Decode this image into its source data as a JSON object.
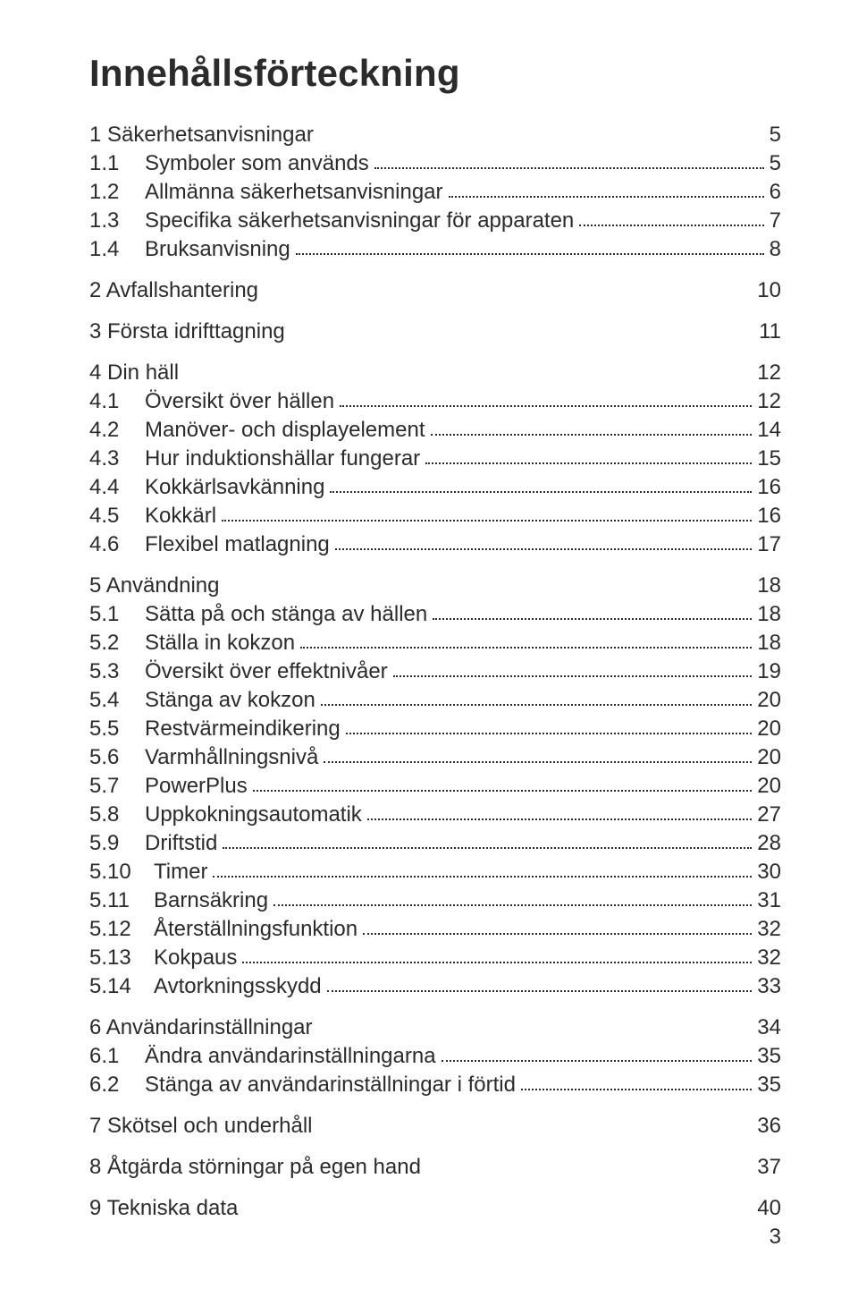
{
  "title": "Innehållsförteckning",
  "page_number": "3",
  "typography": {
    "title_fontsize": 42,
    "title_weight": 700,
    "body_fontsize": 24,
    "font_family": "Arial, Helvetica, sans-serif",
    "text_color": "#2b2b2b",
    "background_color": "#ffffff",
    "dot_leader_color": "#2b2b2b"
  },
  "toc": [
    {
      "num": "1",
      "label": "Säkerhetsanvisningar",
      "page": "5",
      "subs": [
        {
          "num": "1.1",
          "label": "Symboler som används",
          "page": "5"
        },
        {
          "num": "1.2",
          "label": "Allmänna säkerhetsanvisningar",
          "page": "6"
        },
        {
          "num": "1.3",
          "label": "Specifika säkerhetsanvisningar för apparaten",
          "page": "7"
        },
        {
          "num": "1.4",
          "label": "Bruksanvisning",
          "page": "8"
        }
      ]
    },
    {
      "num": "2",
      "label": "Avfallshantering",
      "page": "10",
      "subs": []
    },
    {
      "num": "3",
      "label": "Första idrifttagning",
      "page": "11",
      "subs": []
    },
    {
      "num": "4",
      "label": "Din häll",
      "page": "12",
      "subs": [
        {
          "num": "4.1",
          "label": "Översikt över hällen",
          "page": "12"
        },
        {
          "num": "4.2",
          "label": "Manöver- och displayelement",
          "page": "14"
        },
        {
          "num": "4.3",
          "label": "Hur induktionshällar fungerar",
          "page": "15"
        },
        {
          "num": "4.4",
          "label": "Kokkärlsavkänning",
          "page": "16"
        },
        {
          "num": "4.5",
          "label": "Kokkärl",
          "page": "16"
        },
        {
          "num": "4.6",
          "label": "Flexibel matlagning",
          "page": "17"
        }
      ]
    },
    {
      "num": "5",
      "label": "Användning",
      "page": "18",
      "subs": [
        {
          "num": "5.1",
          "label": "Sätta på och stänga av hällen",
          "page": "18"
        },
        {
          "num": "5.2",
          "label": "Ställa in kokzon",
          "page": "18"
        },
        {
          "num": "5.3",
          "label": "Översikt över effektnivåer",
          "page": "19"
        },
        {
          "num": "5.4",
          "label": "Stänga av kokzon",
          "page": "20"
        },
        {
          "num": "5.5",
          "label": "Restvärmeindikering",
          "page": "20"
        },
        {
          "num": "5.6",
          "label": "Varmhållningsnivå",
          "page": "20"
        },
        {
          "num": "5.7",
          "label": "PowerPlus",
          "page": "20"
        },
        {
          "num": "5.8",
          "label": "Uppkokningsautomatik",
          "page": "27"
        },
        {
          "num": "5.9",
          "label": "Driftstid",
          "page": "28"
        },
        {
          "num": "5.10",
          "label": "Timer",
          "page": "30"
        },
        {
          "num": "5.11",
          "label": "Barnsäkring",
          "page": "31"
        },
        {
          "num": "5.12",
          "label": "Återställningsfunktion",
          "page": "32"
        },
        {
          "num": "5.13",
          "label": "Kokpaus",
          "page": "32"
        },
        {
          "num": "5.14",
          "label": "Avtorkningsskydd",
          "page": "33"
        }
      ]
    },
    {
      "num": "6",
      "label": "Användarinställningar",
      "page": "34",
      "subs": [
        {
          "num": "6.1",
          "label": "Ändra användarinställningarna",
          "page": "35"
        },
        {
          "num": "6.2",
          "label": "Stänga av användarinställningar i förtid",
          "page": "35"
        }
      ]
    },
    {
      "num": "7",
      "label": "Skötsel och underhåll",
      "page": "36",
      "subs": []
    },
    {
      "num": "8",
      "label": "Åtgärda störningar på egen hand",
      "page": "37",
      "subs": []
    },
    {
      "num": "9",
      "label": "Tekniska data",
      "page": "40",
      "subs": []
    }
  ]
}
